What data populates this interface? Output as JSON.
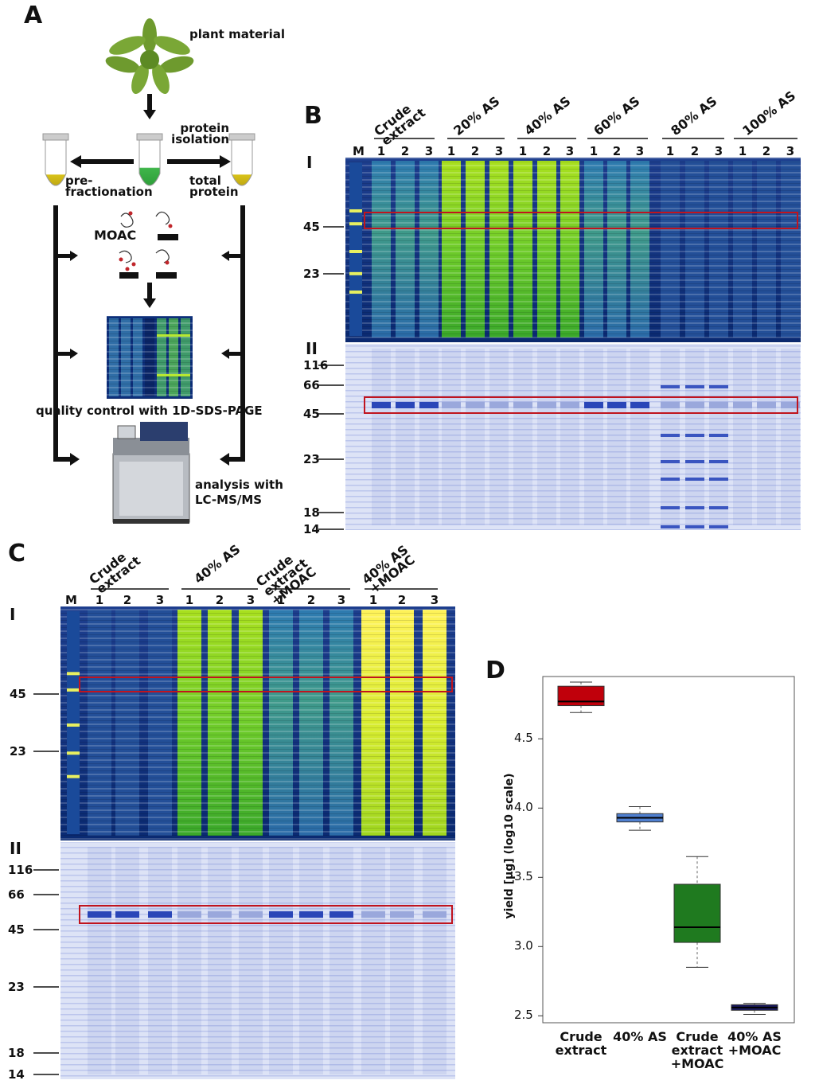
{
  "panelA": {
    "letter": "A",
    "plant_material": "plant material",
    "protein_isolation": "protein isolation",
    "pre_fractionation": "pre-fractionation",
    "total_protein": "total protein",
    "moac": "MOAC",
    "quality_control": "quality control with 1D-SDS-PAGE",
    "analysis": "analysis with LC-MS/MS"
  },
  "panelB": {
    "letter": "B",
    "row1": "I",
    "row2": "II",
    "marker": "M",
    "groups": [
      "Crude extract",
      "20% AS",
      "40% AS",
      "60% AS",
      "80% AS",
      "100% AS"
    ],
    "lanes": [
      "1",
      "2",
      "3"
    ],
    "gel1_ticks": [
      "45",
      "23"
    ],
    "gel2_ticks": [
      "116",
      "66",
      "45",
      "23",
      "18",
      "14"
    ]
  },
  "panelC": {
    "letter": "C",
    "row1": "I",
    "row2": "II",
    "marker": "M",
    "groups": [
      "Crude extract",
      "40% AS",
      "Crude extract +MOAC",
      "40% AS +MOAC"
    ],
    "lanes": [
      "1",
      "2",
      "3"
    ],
    "gel1_ticks": [
      "45",
      "23"
    ],
    "gel2_ticks": [
      "116",
      "66",
      "45",
      "23",
      "18",
      "14"
    ]
  },
  "panelD": {
    "letter": "D"
  },
  "chart_data": {
    "type": "box",
    "title": "",
    "ylabel": "yield [µg] (log10 scale)",
    "xlabel": "",
    "ylim": [
      2.45,
      4.95
    ],
    "yticks": [
      2.5,
      3.0,
      3.5,
      4.0,
      4.5
    ],
    "categories": [
      "Crude extract",
      "40% AS",
      "Crude extract +MOAC",
      "40% AS +MOAC"
    ],
    "boxes": [
      {
        "name": "Crude extract",
        "min": 4.69,
        "q1": 4.74,
        "median": 4.77,
        "q3": 4.88,
        "max": 4.91,
        "color": "#c0000b"
      },
      {
        "name": "40% AS",
        "min": 3.84,
        "q1": 3.9,
        "median": 3.93,
        "q3": 3.96,
        "max": 4.01,
        "color": "#4f7fcf"
      },
      {
        "name": "Crude extract +MOAC",
        "min": 2.85,
        "q1": 3.03,
        "median": 3.14,
        "q3": 3.45,
        "max": 3.65,
        "color": "#1f7a1f"
      },
      {
        "name": "40% AS +MOAC",
        "min": 2.51,
        "q1": 2.54,
        "median": 2.56,
        "q3": 2.58,
        "max": 2.59,
        "color": "#1a1a5e"
      }
    ]
  }
}
